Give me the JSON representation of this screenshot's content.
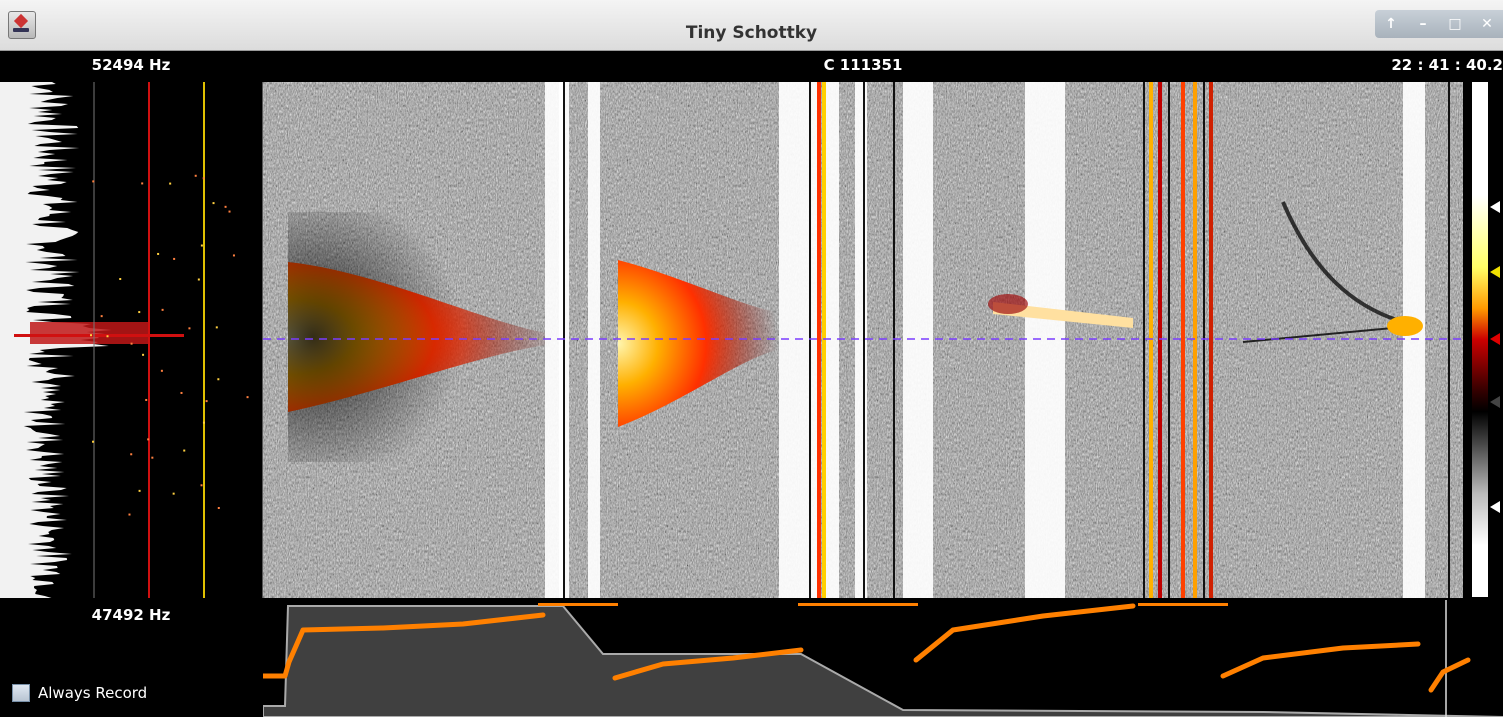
{
  "window": {
    "title": "Tiny Schottky",
    "controls": [
      "↑",
      "–",
      "□",
      "✕"
    ]
  },
  "header": {
    "frequency_top": "52494 Hz",
    "counter": "C 111351",
    "clock": "22 : 41 : 40.2"
  },
  "footer": {
    "frequency_bottom": "47492 Hz",
    "always_record_label": "Always Record",
    "always_record_checked": false
  },
  "colors": {
    "timeline_fill": "#404040",
    "timeline_line": "#aaaaaa",
    "trace": "#ff8000",
    "marker_red": "#d01010",
    "marker_yellow": "#e0c000",
    "center_line": "#7a3cff"
  }
}
